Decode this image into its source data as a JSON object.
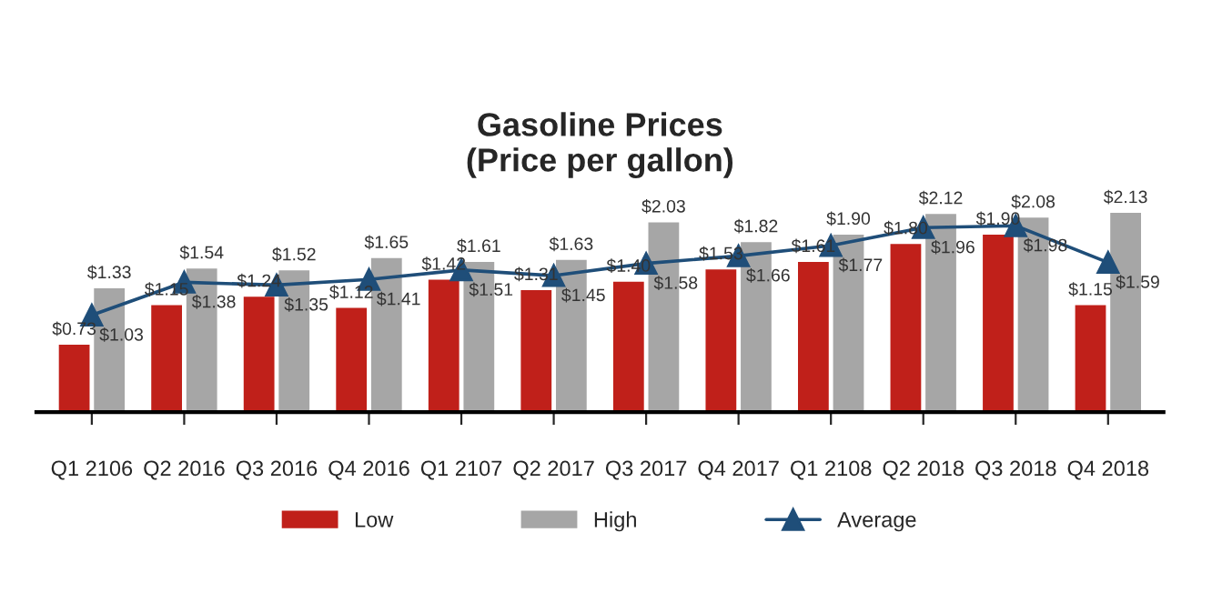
{
  "chart_data": {
    "type": "bar",
    "title": "Gasoline Prices\n(Price per gallon)",
    "categories": [
      "Q1 2106",
      "Q2 2016",
      "Q3 2016",
      "Q4 2016",
      "Q1 2107",
      "Q2 2017",
      "Q3 2017",
      "Q4 2017",
      "Q1 2108",
      "Q2 2018",
      "Q3 2018",
      "Q4 2018"
    ],
    "series": [
      {
        "name": "Low",
        "color": "#c0201a",
        "values": [
          0.73,
          1.15,
          1.24,
          1.12,
          1.42,
          1.31,
          1.4,
          1.53,
          1.61,
          1.8,
          1.9,
          1.15
        ],
        "value_labels": [
          "$0.73",
          "$1.15",
          "$1.24",
          "$1.12",
          "$1.42",
          "$1.31",
          "$1.40",
          "$1.53",
          "$1.61",
          "$1.80",
          "$1.90",
          "$1.15"
        ]
      },
      {
        "name": "High",
        "color": "#a6a6a6",
        "values": [
          1.33,
          1.54,
          1.52,
          1.65,
          1.61,
          1.63,
          2.03,
          1.82,
          1.9,
          2.12,
          2.08,
          2.13
        ],
        "value_labels": [
          "$1.33",
          "$1.54",
          "$1.52",
          "$1.65",
          "$1.61",
          "$1.63",
          "$2.03",
          "$1.82",
          "$1.90",
          "$2.12",
          "$2.08",
          "$2.13"
        ]
      },
      {
        "name": "Average",
        "type": "line",
        "color": "#1f4e79",
        "marker": "triangle",
        "values": [
          1.03,
          1.38,
          1.35,
          1.41,
          1.51,
          1.45,
          1.58,
          1.66,
          1.77,
          1.96,
          1.98,
          1.59
        ],
        "value_labels": [
          "$1.03",
          "$1.38",
          "$1.35",
          "$1.41",
          "$1.51",
          "$1.45",
          "$1.58",
          "$1.66",
          "$1.77",
          "$1.96",
          "$1.98",
          "$1.59"
        ]
      }
    ],
    "tick_labels": "x",
    "grid": false,
    "legend": "bottom"
  }
}
